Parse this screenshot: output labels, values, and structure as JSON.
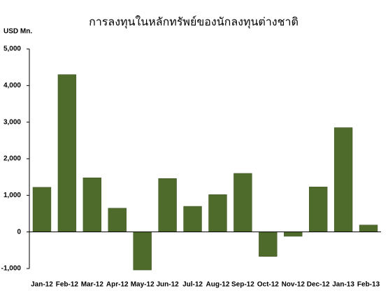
{
  "chart_data": {
    "type": "bar",
    "title": "การลงทุนในหลักทรัพย์ของนักลงทุนต่างชาติ",
    "y_label": "USD Mn.",
    "categories": [
      "Jan-12",
      "Feb-12",
      "Mar-12",
      "Apr-12",
      "May-12",
      "Jun-12",
      "Jul-12",
      "Aug-12",
      "Sep-12",
      "Oct-12",
      "Nov-12",
      "Dec-12",
      "Jan-13",
      "Feb-13"
    ],
    "values": [
      1220,
      4300,
      1480,
      650,
      -1040,
      1460,
      700,
      1020,
      1600,
      -670,
      -120,
      1230,
      2850,
      190
    ],
    "color": "#4f6b2b",
    "ylim": [
      -1000,
      5000
    ],
    "yticks": [
      {
        "value": -1000,
        "label": "-1,000"
      },
      0,
      {
        "value": 1000,
        "label": "1,000"
      },
      {
        "value": 2000,
        "label": "2,000"
      },
      {
        "value": 3000,
        "label": "3,000"
      },
      {
        "value": 4000,
        "label": "4,000"
      },
      {
        "value": 5000,
        "label": "5,000"
      }
    ],
    "grid": false
  }
}
